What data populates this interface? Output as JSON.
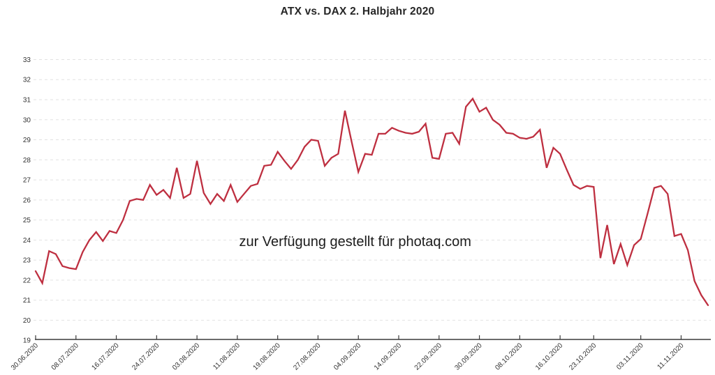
{
  "chart": {
    "title": "ATX vs. DAX 2. Halbjahr 2020",
    "watermark": "zur Verfügung gestellt für photaq.com"
  },
  "chart_data": {
    "type": "line",
    "title": "ATX vs. DAX 2. Halbjahr 2020",
    "series_name": "ATX",
    "legend": "none",
    "grid": "horizontal-dashed",
    "line_color": "#be2f40",
    "grid_color": "#e2e2e2",
    "axis_color": "#3a3a3a",
    "ylim": [
      19,
      33
    ],
    "y_ticks": [
      19,
      20,
      21,
      22,
      23,
      24,
      25,
      26,
      27,
      28,
      29,
      30,
      31,
      32,
      33
    ],
    "x_tick_labels": [
      "30.06.2020",
      "08.07.2020",
      "16.07.2020",
      "24.07.2020",
      "03.08.2020",
      "11.08.2020",
      "19.08.2020",
      "27.08.2020",
      "04.09.2020",
      "14.09.2020",
      "22.09.2020",
      "30.09.2020",
      "08.10.2020",
      "16.10.2020",
      "23.10.2020",
      "03.11.2020",
      "11.11.2020"
    ],
    "x_tick_indices": [
      0,
      6,
      12,
      18,
      24,
      30,
      36,
      42,
      48,
      54,
      60,
      66,
      72,
      78,
      83,
      90,
      96
    ],
    "x": [
      "30.06",
      "01.07",
      "02.07",
      "03.07",
      "06.07",
      "07.07",
      "08.07",
      "09.07",
      "10.07",
      "13.07",
      "14.07",
      "15.07",
      "16.07",
      "17.07",
      "20.07",
      "21.07",
      "22.07",
      "23.07",
      "24.07",
      "27.07",
      "28.07",
      "29.07",
      "30.07",
      "31.07",
      "03.08",
      "04.08",
      "05.08",
      "06.08",
      "07.08",
      "10.08",
      "11.08",
      "12.08",
      "13.08",
      "14.08",
      "17.08",
      "18.08",
      "19.08",
      "20.08",
      "21.08",
      "24.08",
      "25.08",
      "26.08",
      "27.08",
      "28.08",
      "31.08",
      "01.09",
      "02.09",
      "03.09",
      "04.09",
      "07.09",
      "08.09",
      "09.09",
      "10.09",
      "11.09",
      "14.09",
      "15.09",
      "16.09",
      "17.09",
      "18.09",
      "21.09",
      "22.09",
      "23.09",
      "24.09",
      "25.09",
      "28.09",
      "29.09",
      "30.09",
      "01.10",
      "02.10",
      "05.10",
      "06.10",
      "07.10",
      "08.10",
      "09.10",
      "12.10",
      "13.10",
      "14.10",
      "15.10",
      "16.10",
      "19.10",
      "20.10",
      "21.10",
      "22.10",
      "23.10",
      "26.10",
      "27.10",
      "28.10",
      "29.10",
      "30.10",
      "02.11",
      "03.11",
      "04.11",
      "05.11",
      "06.11",
      "09.11",
      "10.11",
      "11.11",
      "12.11",
      "13.11",
      "16.11",
      "17.11"
    ],
    "values": [
      22.45,
      21.85,
      23.45,
      23.3,
      22.7,
      22.6,
      22.55,
      23.4,
      24.0,
      24.4,
      23.95,
      24.45,
      24.35,
      25.0,
      25.95,
      26.05,
      26.0,
      26.75,
      26.25,
      26.5,
      26.1,
      27.6,
      26.1,
      26.3,
      27.95,
      26.35,
      25.8,
      26.3,
      25.95,
      26.75,
      25.9,
      26.3,
      26.7,
      26.8,
      27.7,
      27.75,
      28.4,
      27.95,
      27.55,
      28.0,
      28.65,
      29.0,
      28.95,
      27.7,
      28.1,
      28.3,
      30.45,
      28.9,
      27.4,
      28.3,
      28.25,
      29.3,
      29.3,
      29.6,
      29.45,
      29.35,
      29.3,
      29.4,
      29.8,
      28.1,
      28.05,
      29.3,
      29.35,
      28.8,
      30.65,
      31.05,
      30.4,
      30.6,
      30.0,
      29.75,
      29.35,
      29.3,
      29.1,
      29.05,
      29.15,
      29.5,
      27.6,
      28.6,
      28.3,
      27.5,
      26.75,
      26.55,
      26.7,
      26.65,
      23.1,
      24.75,
      22.8,
      23.8,
      22.75,
      23.75,
      24.05,
      25.3,
      26.6,
      26.7,
      26.3,
      24.2,
      24.3,
      23.5,
      21.95,
      21.25,
      20.75
    ]
  }
}
